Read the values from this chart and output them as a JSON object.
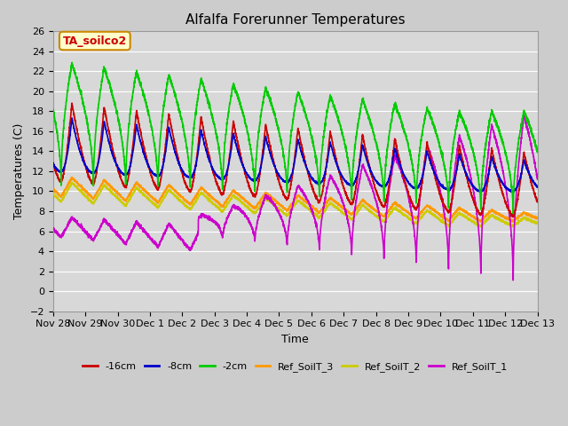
{
  "title": "Alfalfa Forerunner Temperatures",
  "xlabel": "Time",
  "ylabel": "Temperatures (C)",
  "ylim": [
    -2,
    26
  ],
  "annotation_text": "TA_soilco2",
  "annotation_color": "#cc0000",
  "annotation_bg": "#ffffcc",
  "annotation_border": "#cc8800",
  "series_colors": {
    "-16cm": "#cc0000",
    "-8cm": "#0000cc",
    "-2cm": "#00cc00",
    "Ref_SoilT_3": "#ff9900",
    "Ref_SoilT_2": "#cccc00",
    "Ref_SoilT_1": "#cc00cc"
  },
  "legend_labels": [
    "-16cm",
    "-8cm",
    "-2cm",
    "Ref_SoilT_3",
    "Ref_SoilT_2",
    "Ref_SoilT_1"
  ],
  "x_tick_labels": [
    "Nov 28",
    "Nov 29",
    "Nov 30",
    "Dec 1",
    "Dec 2",
    "Dec 3",
    "Dec 4",
    "Dec 5",
    "Dec 6",
    "Dec 7",
    "Dec 8",
    "Dec 9",
    "Dec 10",
    "Dec 11",
    "Dec 12",
    "Dec 13"
  ],
  "x_tick_positions": [
    0,
    1,
    2,
    3,
    4,
    5,
    6,
    7,
    8,
    9,
    10,
    11,
    12,
    13,
    14,
    15
  ],
  "fig_width": 6.4,
  "fig_height": 4.8,
  "dpi": 100
}
